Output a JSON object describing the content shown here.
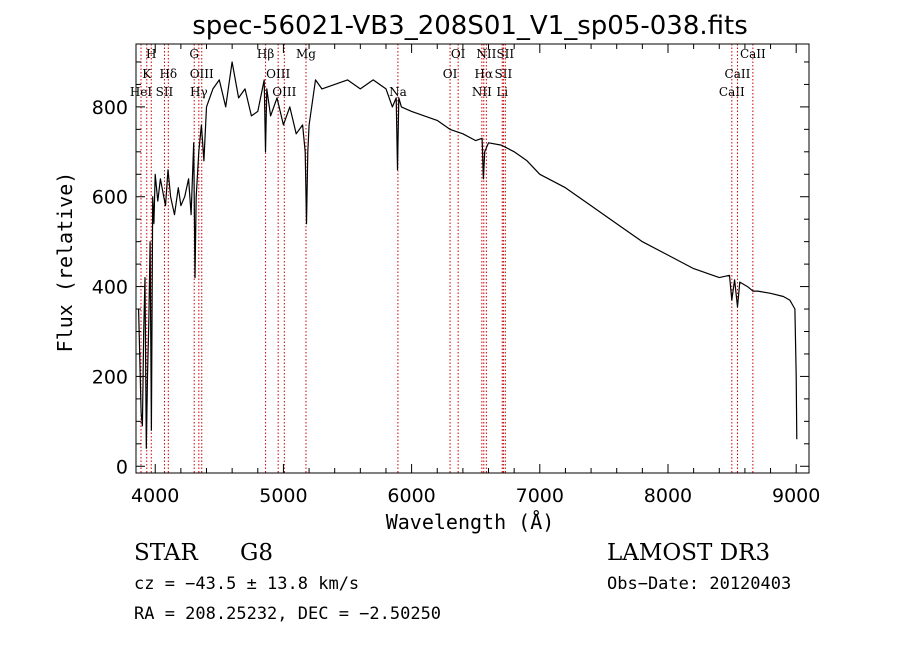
{
  "chart_data": {
    "type": "line",
    "title": "spec-56021-VB3_208S01_V1_sp05-038.fits",
    "xlabel": "Wavelength (Å)",
    "ylabel": "Flux (relative)",
    "xlim": [
      3850,
      9100
    ],
    "ylim": [
      -15,
      940
    ],
    "x_ticks": [
      4000,
      5000,
      6000,
      7000,
      8000,
      9000
    ],
    "y_ticks": [
      0,
      200,
      400,
      600,
      800
    ],
    "spectrum": {
      "name": "flux",
      "x": [
        3870,
        3880,
        3890,
        3900,
        3910,
        3920,
        3930,
        3940,
        3950,
        3960,
        3970,
        3980,
        3990,
        4000,
        4010,
        4020,
        4040,
        4060,
        4080,
        4100,
        4120,
        4150,
        4180,
        4200,
        4230,
        4260,
        4280,
        4300,
        4310,
        4320,
        4340,
        4360,
        4380,
        4400,
        4450,
        4500,
        4550,
        4600,
        4650,
        4700,
        4750,
        4800,
        4850,
        4860,
        4870,
        4900,
        4950,
        5000,
        5050,
        5100,
        5150,
        5170,
        5180,
        5190,
        5200,
        5250,
        5300,
        5400,
        5500,
        5600,
        5700,
        5800,
        5850,
        5880,
        5890,
        5900,
        5920,
        6000,
        6100,
        6200,
        6300,
        6400,
        6500,
        6550,
        6560,
        6570,
        6600,
        6700,
        6800,
        6900,
        7000,
        7200,
        7400,
        7600,
        7800,
        8000,
        8200,
        8400,
        8480,
        8498,
        8520,
        8542,
        8560,
        8620,
        8662,
        8700,
        8800,
        8900,
        8950,
        8990,
        9000,
        9005
      ],
      "values": [
        350,
        240,
        120,
        90,
        300,
        420,
        40,
        200,
        320,
        500,
        80,
        600,
        540,
        650,
        620,
        590,
        640,
        610,
        580,
        660,
        600,
        560,
        620,
        580,
        600,
        640,
        560,
        720,
        420,
        600,
        700,
        760,
        680,
        800,
        840,
        860,
        800,
        900,
        820,
        840,
        780,
        790,
        860,
        700,
        840,
        780,
        820,
        760,
        800,
        740,
        760,
        700,
        540,
        700,
        760,
        860,
        840,
        850,
        860,
        840,
        860,
        840,
        800,
        820,
        660,
        820,
        800,
        790,
        780,
        770,
        750,
        740,
        725,
        730,
        640,
        700,
        720,
        715,
        700,
        680,
        650,
        620,
        580,
        540,
        500,
        470,
        440,
        420,
        425,
        370,
        415,
        355,
        410,
        400,
        390,
        390,
        385,
        378,
        370,
        350,
        200,
        60
      ]
    },
    "reference_lines": [
      {
        "wavelength": 3889,
        "label": "HeI",
        "row": 3
      },
      {
        "wavelength": 3934,
        "label": "K",
        "row": 2
      },
      {
        "wavelength": 3969,
        "label": "H",
        "row": 1
      },
      {
        "wavelength": 4072,
        "label": "SII",
        "row": 3
      },
      {
        "wavelength": 4102,
        "label": "Hδ",
        "row": 2
      },
      {
        "wavelength": 4304,
        "label": "G",
        "row": 1
      },
      {
        "wavelength": 4340,
        "label": "Hγ",
        "row": 3
      },
      {
        "wavelength": 4363,
        "label": "OIII",
        "row": 2
      },
      {
        "wavelength": 4861,
        "label": "Hβ",
        "row": 1
      },
      {
        "wavelength": 4959,
        "label": "OIII",
        "row": 2
      },
      {
        "wavelength": 5007,
        "label": "OIII",
        "row": 3
      },
      {
        "wavelength": 5176,
        "label": "Mg",
        "row": 1
      },
      {
        "wavelength": 5893,
        "label": "Na",
        "row": 3
      },
      {
        "wavelength": 6300,
        "label": "OI",
        "row": 2
      },
      {
        "wavelength": 6363,
        "label": "OI",
        "row": 1
      },
      {
        "wavelength": 6548,
        "label": "NII",
        "row": 3
      },
      {
        "wavelength": 6563,
        "label": "Hα",
        "row": 2
      },
      {
        "wavelength": 6583,
        "label": "NII",
        "row": 1
      },
      {
        "wavelength": 6707,
        "label": "Li",
        "row": 3
      },
      {
        "wavelength": 6716,
        "label": "SII",
        "row": 2
      },
      {
        "wavelength": 6731,
        "label": "SII",
        "row": 1
      },
      {
        "wavelength": 8498,
        "label": "CaII",
        "row": 3
      },
      {
        "wavelength": 8542,
        "label": "CaII",
        "row": 2
      },
      {
        "wavelength": 8662,
        "label": "CaII",
        "row": 1
      }
    ],
    "colors": {
      "spectrum": "#000000",
      "reference_line": "#cc0000",
      "axes": "#000000"
    }
  },
  "info": {
    "object_class": "STAR",
    "subclass": "G8",
    "survey": "LAMOST DR3",
    "cz": "cz = −43.5 ± 13.8 km/s",
    "obs_date": "Obs−Date: 20120403",
    "coords": "RA = 208.25232, DEC =  −2.50250"
  }
}
